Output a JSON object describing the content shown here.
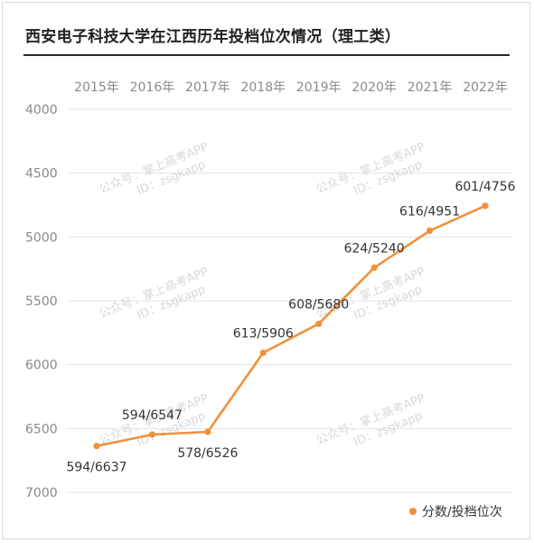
{
  "chart_data": {
    "type": "line",
    "title": "西安电子科技大学在江西历年投档位次情况（理工类）",
    "categories": [
      "2015年",
      "2016年",
      "2017年",
      "2018年",
      "2019年",
      "2020年",
      "2021年",
      "2022年"
    ],
    "series": [
      {
        "name": "分数/投档位次",
        "values": [
          6637,
          6547,
          6526,
          5906,
          5680,
          5240,
          4951,
          4756
        ],
        "scores": [
          594,
          594,
          578,
          613,
          608,
          624,
          616,
          601
        ],
        "labels": [
          "594/6637",
          "594/6547",
          "578/6526",
          "613/5906",
          "608/5680",
          "624/5240",
          "616/4951",
          "601/4756"
        ]
      }
    ],
    "yticks": [
      "4000",
      "4500",
      "5000",
      "5500",
      "6000",
      "6500",
      "7000"
    ],
    "ylim": [
      4000,
      7000
    ],
    "y_inverted": true,
    "grid": true,
    "legend_position": "bottom-right",
    "color": "#f0913a"
  },
  "watermark": {
    "line1": "公众号：掌上高考APP",
    "line2": "ID：zsgkapp"
  }
}
